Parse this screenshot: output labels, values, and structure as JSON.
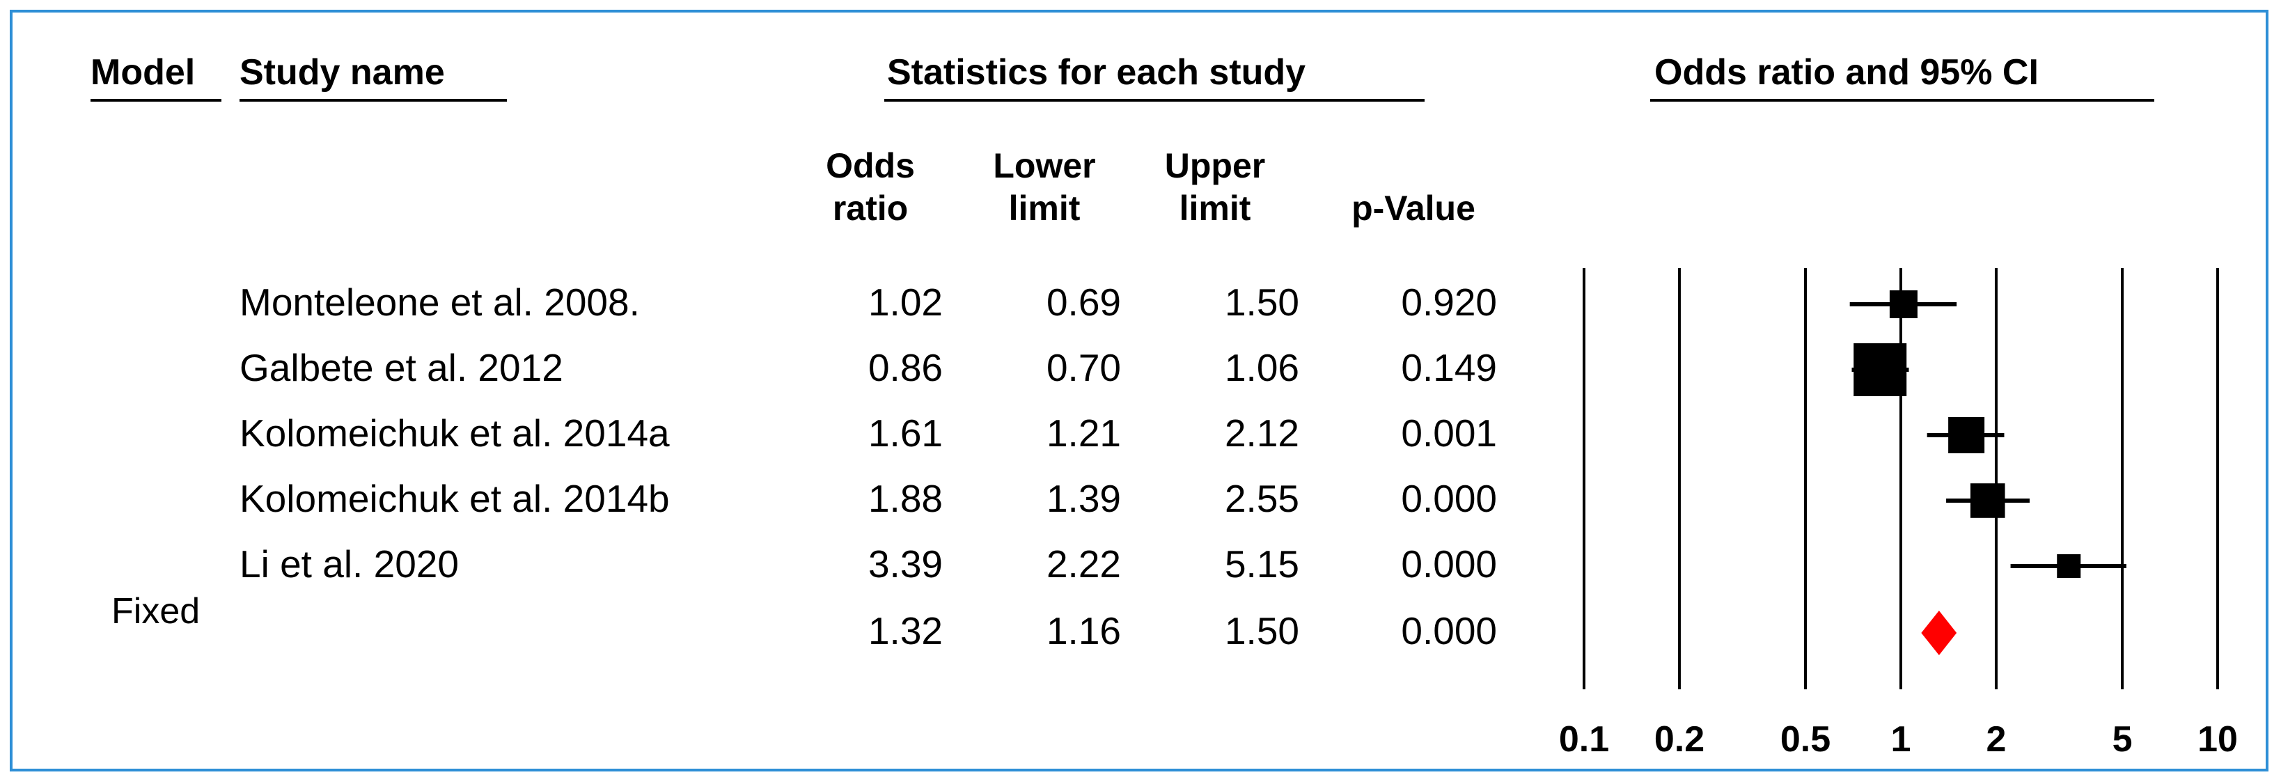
{
  "headers": {
    "model": "Model",
    "study_name": "Study name",
    "statistics": "Statistics for each study",
    "plot_title": "Odds ratio and 95% CI",
    "col_or_1": "Odds",
    "col_or_2": "ratio",
    "col_lower_1": "Lower",
    "col_lower_2": "limit",
    "col_upper_1": "Upper",
    "col_upper_2": "limit",
    "col_p": "p-Value"
  },
  "rows": [
    {
      "study": "Monteleone et al. 2008.",
      "or": "1.02",
      "lower": "0.69",
      "upper": "1.50",
      "p": "0.920"
    },
    {
      "study": "Galbete et al. 2012",
      "or": "0.86",
      "lower": "0.70",
      "upper": "1.06",
      "p": "0.149"
    },
    {
      "study": "Kolomeichuk et al. 2014a",
      "or": "1.61",
      "lower": "1.21",
      "upper": "2.12",
      "p": "0.001"
    },
    {
      "study": "Kolomeichuk et al. 2014b",
      "or": "1.88",
      "lower": "1.39",
      "upper": "2.55",
      "p": "0.000"
    },
    {
      "study": "Li et al. 2020",
      "or": "3.39",
      "lower": "2.22",
      "upper": "5.15",
      "p": "0.000"
    }
  ],
  "summary": {
    "model": "Fixed",
    "or": "1.32",
    "lower": "1.16",
    "upper": "1.50",
    "p": "0.000"
  },
  "colors": {
    "marker": "#000000",
    "summary": "#ff0000",
    "border": "#2e8fd6"
  },
  "chart_data": {
    "type": "scatter",
    "title": "Odds ratio and 95% CI",
    "x_scale": "log",
    "xlim": [
      0.1,
      10
    ],
    "x_ticks": [
      "0.1",
      "0.2",
      "0.5",
      "1",
      "2",
      "5",
      "10"
    ],
    "x_tick_values": [
      0.1,
      0.2,
      0.5,
      1,
      2,
      5,
      10
    ],
    "gridlines": "vertical at each tick",
    "series": [
      {
        "points": [
          {
            "label": "Monteleone et al. 2008.",
            "or": 1.02,
            "lower": 0.69,
            "upper": 1.5,
            "weight": 2
          },
          {
            "label": "Galbete et al. 2012",
            "or": 0.86,
            "lower": 0.7,
            "upper": 1.06,
            "weight": 5
          },
          {
            "label": "Kolomeichuk et al. 2014a",
            "or": 1.61,
            "lower": 1.21,
            "upper": 2.12,
            "weight": 3
          },
          {
            "label": "Kolomeichuk et al. 2014b",
            "or": 1.88,
            "lower": 1.39,
            "upper": 2.55,
            "weight": 2.8
          },
          {
            "label": "Li et al. 2020",
            "or": 3.39,
            "lower": 2.22,
            "upper": 5.15,
            "weight": 1.5
          }
        ]
      },
      {
        "summary": {
          "label": "Fixed",
          "or": 1.32,
          "lower": 1.16,
          "upper": 1.5
        }
      }
    ]
  }
}
